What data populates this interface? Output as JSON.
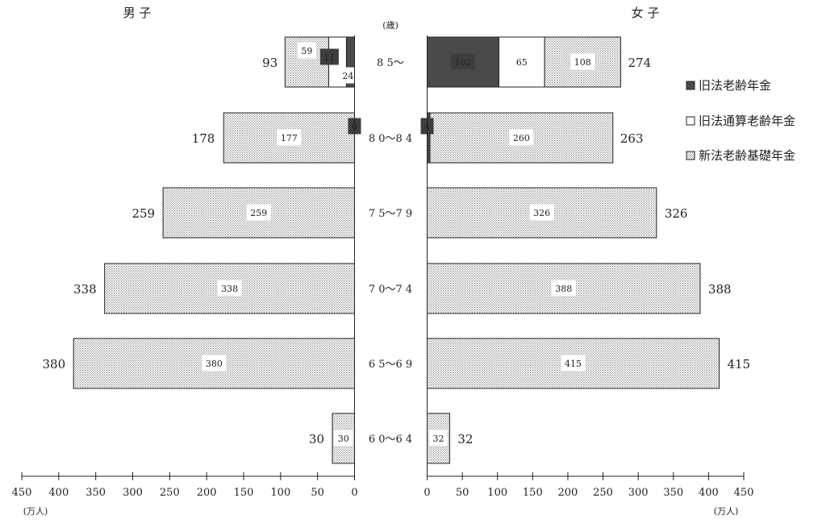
{
  "titles": {
    "male": "男 子",
    "female": "女 子",
    "age_unit": "(歳)"
  },
  "legend": [
    {
      "label": "旧法老齢年金",
      "key": "old"
    },
    {
      "label": "旧法通算老齢年金",
      "key": "tsusan"
    },
    {
      "label": "新法老齢基礎年金",
      "key": "new"
    }
  ],
  "colors": {
    "old": "#4a4a4a",
    "tsusan": "#ffffff",
    "new": "#e4e4e4",
    "axis": "#222222"
  },
  "chart_data": {
    "type": "bar",
    "orientation": "horizontal-population-pyramid",
    "categories": [
      "8 5～",
      "8 0～8 4",
      "7 5～7 9",
      "7 0～7 4",
      "6 5～6 9",
      "6 0～6 4"
    ],
    "series": [
      {
        "name": "旧法老齢年金",
        "male": [
          11,
          0,
          null,
          null,
          null,
          null
        ],
        "female": [
          102,
          4,
          null,
          null,
          null,
          null
        ]
      },
      {
        "name": "旧法通算老齢年金",
        "male": [
          24,
          null,
          null,
          null,
          null,
          null
        ],
        "female": [
          65,
          null,
          null,
          null,
          null,
          null
        ]
      },
      {
        "name": "新法老齢基礎年金",
        "male": [
          59,
          177,
          259,
          338,
          380,
          30
        ],
        "female": [
          108,
          260,
          326,
          388,
          415,
          32
        ]
      }
    ],
    "male_totals": [
      93,
      178,
      259,
      338,
      380,
      30
    ],
    "female_totals": [
      274,
      263,
      326,
      388,
      415,
      32
    ],
    "xlim": [
      0,
      450
    ],
    "x_ticks": [
      "0",
      "50",
      "100",
      "150",
      "200",
      "250",
      "300",
      "350",
      "400",
      "450"
    ],
    "unit_label": "(万人)"
  }
}
